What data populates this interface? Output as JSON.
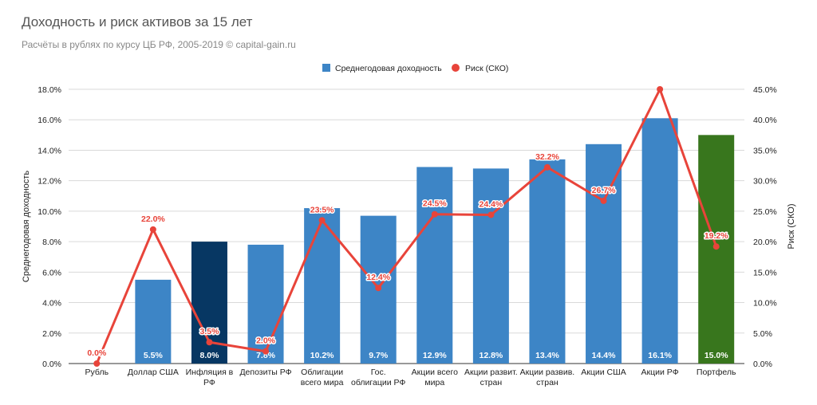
{
  "header": {
    "title": "Доходность и риск активов за 15 лет",
    "subtitle": "Расчёты в рублях по курсу ЦБ РФ, 2005-2019 © capital-gain.ru"
  },
  "chart_data": {
    "type": "bar",
    "title": "Доходность и риск активов за 15 лет",
    "subtitle": "Расчёты в рублях по курсу ЦБ РФ, 2005-2019 © capital-gain.ru",
    "ylabel": "Среднегодовая доходность",
    "y2label": "Риск (СКО)",
    "ylim": [
      0,
      18
    ],
    "y2lim": [
      0,
      45
    ],
    "yticks": [
      "0.0%",
      "2.0%",
      "4.0%",
      "6.0%",
      "8.0%",
      "10.0%",
      "12.0%",
      "14.0%",
      "16.0%",
      "18.0%"
    ],
    "y2ticks": [
      "0.0%",
      "5.0%",
      "10.0%",
      "15.0%",
      "20.0%",
      "25.0%",
      "30.0%",
      "35.0%",
      "40.0%",
      "45.0%"
    ],
    "grid": true,
    "legend_position": "top",
    "categories": [
      [
        "Рубль"
      ],
      [
        "Доллар США"
      ],
      [
        "Инфляция в",
        "РФ"
      ],
      [
        "Депозиты РФ"
      ],
      [
        "Облигации",
        "всего мира"
      ],
      [
        "Гос.",
        "облигации РФ"
      ],
      [
        "Акции всего",
        "мира"
      ],
      [
        "Акции развит.",
        "стран"
      ],
      [
        "Акции развив.",
        "стран"
      ],
      [
        "Акции США"
      ],
      [
        "Акции РФ"
      ],
      [
        "Портфель"
      ]
    ],
    "series": [
      {
        "name": "Среднегодовая доходность",
        "kind": "bar",
        "axis": "left",
        "color": "#3d85c6",
        "values": [
          0.0,
          5.5,
          8.0,
          7.8,
          10.2,
          9.7,
          12.9,
          12.8,
          13.4,
          14.4,
          16.1,
          15.0
        ],
        "labels": [
          "0.0%",
          "5.5%",
          "8.0%",
          "7.8%",
          "10.2%",
          "9.7%",
          "12.9%",
          "12.8%",
          "13.4%",
          "14.4%",
          "16.1%",
          "15.0%"
        ],
        "point_colors": [
          "#3d85c6",
          "#3d85c6",
          "#073763",
          "#3d85c6",
          "#3d85c6",
          "#3d85c6",
          "#3d85c6",
          "#3d85c6",
          "#3d85c6",
          "#3d85c6",
          "#3d85c6",
          "#38761d"
        ]
      },
      {
        "name": "Риск (СКО)",
        "kind": "line",
        "axis": "right",
        "color": "#e8443a",
        "values": [
          0.0,
          22.0,
          3.5,
          2.0,
          23.5,
          12.4,
          24.5,
          24.4,
          32.2,
          26.7,
          45.0,
          19.2
        ],
        "labels": [
          "0.0%",
          "22.0%",
          "3.5%",
          "2.0%",
          "23.5%",
          "12.4%",
          "24.5%",
          "24.4%",
          "32.2%",
          "26.7%",
          "",
          "19.2%"
        ]
      }
    ]
  }
}
